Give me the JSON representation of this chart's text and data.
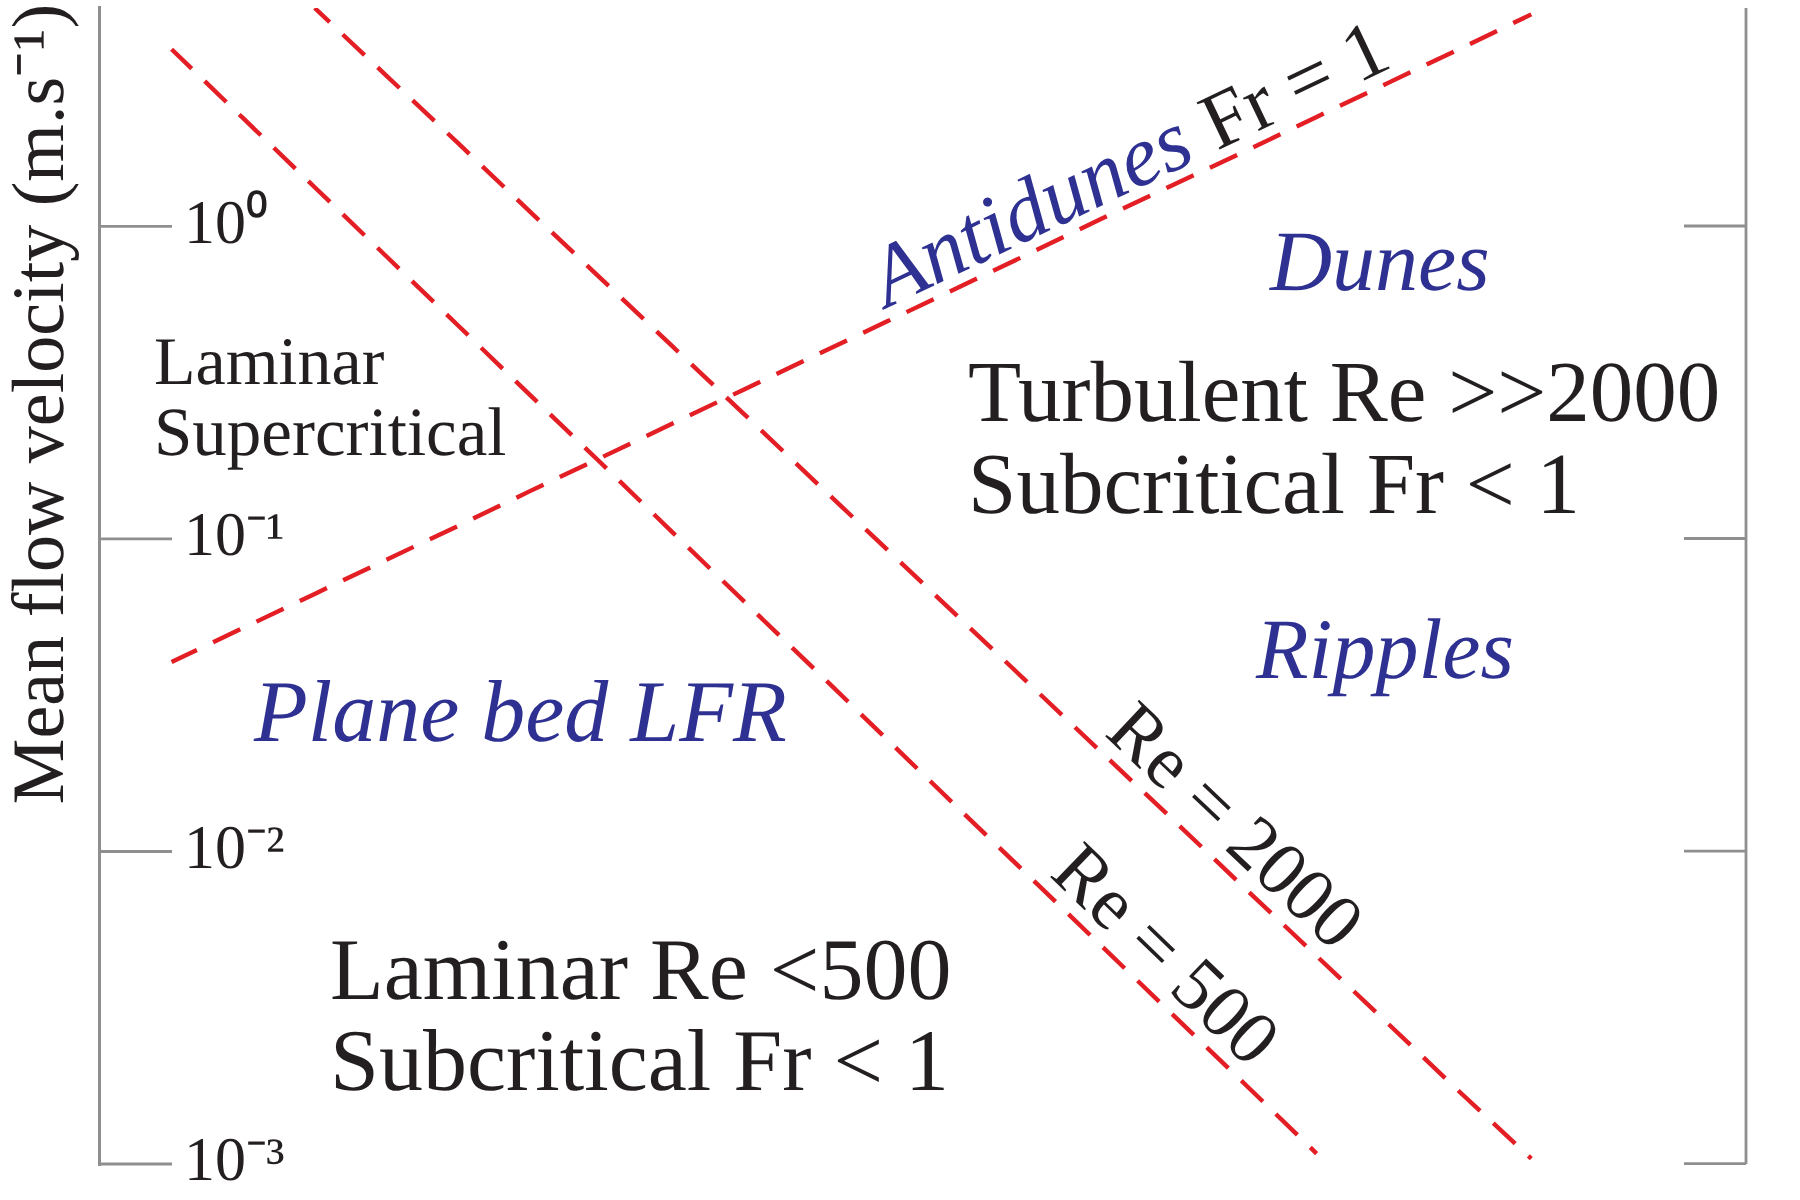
{
  "chart_data": {
    "type": "line",
    "ylabel": "Mean flow velocity (m.s⁻¹)",
    "annotations": [
      "Antidunes",
      "Dunes",
      "Laminar",
      "Supercritical",
      "Turbulent Re >>2000",
      "Subcritical Fr < 1",
      "Ripples",
      "Plane bed LFR",
      "Laminar Re <500",
      "Subcritical Fr < 1"
    ],
    "categories": [
      null,
      null,
      null,
      null,
      null,
      null,
      null,
      null,
      null,
      null,
      null,
      null,
      null,
      null,
      null,
      null,
      null,
      null,
      null,
      null,
      null,
      null,
      null,
      null
    ],
    "series": [
      {
        "name": "Re = 500",
        "color": "#e31e24",
        "values": [
          null,
          3.69,
          2.22,
          1.335,
          0.803,
          0.483,
          0.29,
          0.175,
          0.105,
          0.0631,
          0.038,
          0.0228,
          0.0137,
          0.00826,
          0.00497,
          0.00299,
          0.0018,
          0.00108,
          null,
          null,
          null,
          null,
          null,
          null
        ]
      },
      {
        "name": "Re = 2000",
        "color": "#e31e24",
        "values": [
          null,
          null,
          null,
          5.0,
          3.04,
          1.85,
          1.12,
          0.681,
          0.413,
          0.251,
          0.152,
          0.0924,
          0.0561,
          0.0341,
          0.0207,
          0.0126,
          0.00762,
          0.00463,
          0.00281,
          0.0017,
          0.00104,
          null,
          null,
          null
        ]
      },
      {
        "name": "Fr = 1",
        "color": "#e31e24",
        "values": [
          null,
          0.0404,
          0.0519,
          0.0667,
          0.0858,
          0.11,
          0.142,
          0.182,
          0.234,
          0.301,
          0.387,
          0.497,
          0.639,
          0.822,
          1.06,
          1.36,
          1.74,
          2.24,
          2.88,
          3.7,
          4.77,
          null,
          null,
          null
        ]
      }
    ],
    "ylim": [
      0.001,
      5
    ],
    "yticks": [
      {
        "value": 1,
        "label": "10⁰"
      },
      {
        "value": 0.1,
        "label": "10⁻¹"
      },
      {
        "value": 0.01,
        "label": "10⁻²"
      },
      {
        "value": 0.001,
        "label": "10⁻³"
      }
    ],
    "log": "y",
    "tick_labels": "y",
    "line_style": "dashed"
  }
}
